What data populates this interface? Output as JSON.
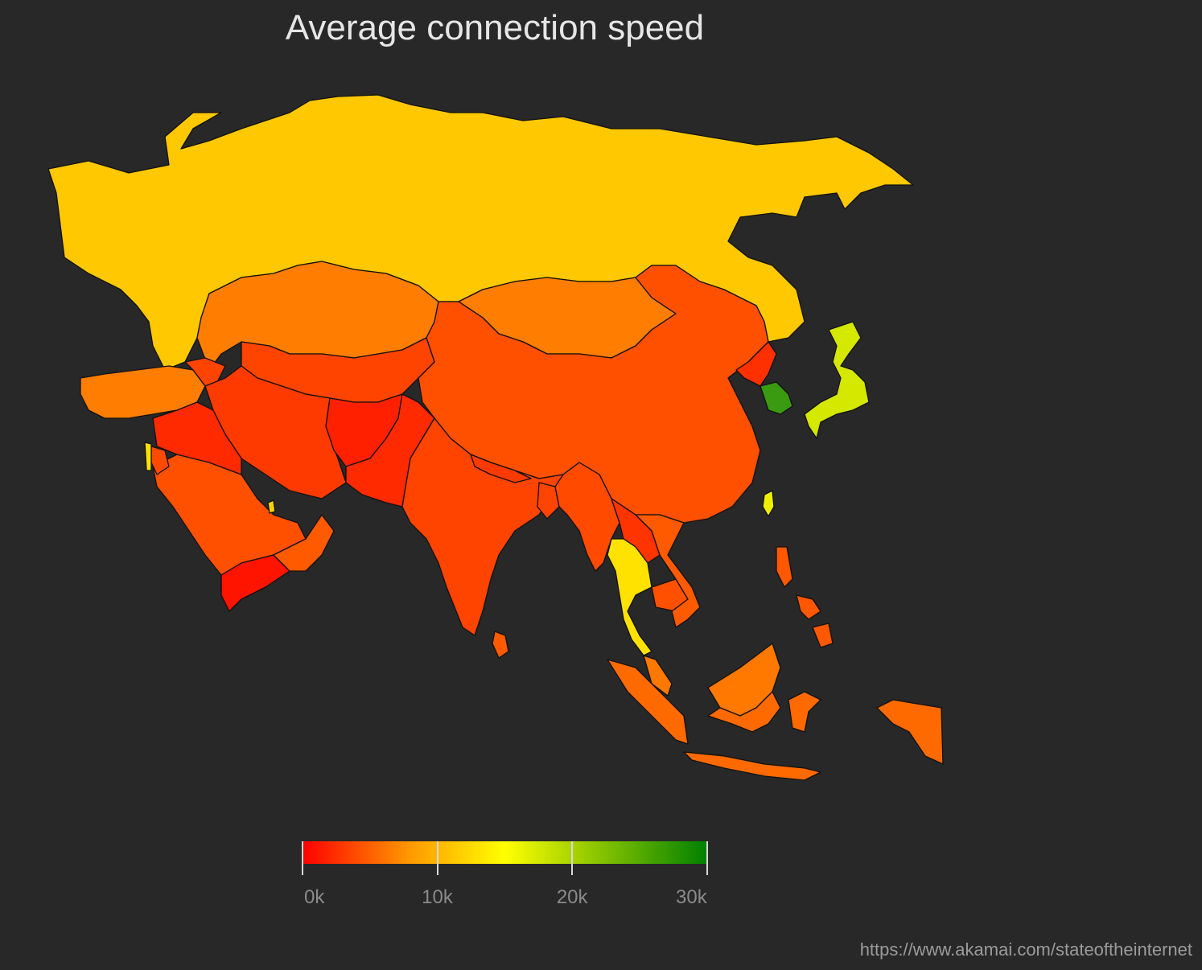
{
  "title": "Average connection speed",
  "source": "https://www.akamai.com/stateoftheinternet",
  "legend": {
    "min": 0,
    "max": 30000,
    "ticks": [
      {
        "value": 0,
        "label": "0k"
      },
      {
        "value": 10000,
        "label": "10k"
      },
      {
        "value": 20000,
        "label": "20k"
      },
      {
        "value": 30000,
        "label": "30k"
      }
    ],
    "gradient": [
      {
        "value": 0,
        "color": "#ff0000"
      },
      {
        "value": 8000,
        "color": "#ff9900"
      },
      {
        "value": 15000,
        "color": "#ffff00"
      },
      {
        "value": 30000,
        "color": "#008000"
      }
    ]
  },
  "regions": [
    {
      "id": "russia",
      "color": "#ffc800"
    },
    {
      "id": "kazakhstan",
      "color": "#ff7d00"
    },
    {
      "id": "mongolia",
      "color": "#ff7d00"
    },
    {
      "id": "china",
      "color": "#ff5000"
    },
    {
      "id": "north-korea",
      "color": "#ff3000"
    },
    {
      "id": "south-korea",
      "color": "#3a9a10"
    },
    {
      "id": "japan",
      "color": "#d4e800"
    },
    {
      "id": "taiwan",
      "color": "#f0ee00"
    },
    {
      "id": "turkey",
      "color": "#ff7d00"
    },
    {
      "id": "caucasus",
      "color": "#ff4400"
    },
    {
      "id": "central-asia",
      "color": "#ff4400"
    },
    {
      "id": "iran",
      "color": "#ff3a00"
    },
    {
      "id": "afghanistan",
      "color": "#ff2000"
    },
    {
      "id": "pakistan",
      "color": "#ff2a00"
    },
    {
      "id": "india",
      "color": "#ff4400"
    },
    {
      "id": "nepal",
      "color": "#ff3a00"
    },
    {
      "id": "sri-lanka",
      "color": "#ff5a00"
    },
    {
      "id": "myanmar",
      "color": "#ff4a00"
    },
    {
      "id": "bangladesh",
      "color": "#ff4400"
    },
    {
      "id": "thailand",
      "color": "#ffe200"
    },
    {
      "id": "laos",
      "color": "#ff3400"
    },
    {
      "id": "vietnam",
      "color": "#ff5a00"
    },
    {
      "id": "cambodia",
      "color": "#ff5000"
    },
    {
      "id": "malaysia",
      "color": "#ff7800"
    },
    {
      "id": "indonesia",
      "color": "#ff6a00"
    },
    {
      "id": "philippines",
      "color": "#ff5800"
    },
    {
      "id": "saudi-arabia",
      "color": "#ff5000"
    },
    {
      "id": "yemen",
      "color": "#ff1400"
    },
    {
      "id": "oman",
      "color": "#ff5a00"
    },
    {
      "id": "iraq-syria",
      "color": "#ff2a00"
    },
    {
      "id": "jordan",
      "color": "#ff4a00"
    },
    {
      "id": "israel",
      "color": "#ffe000"
    },
    {
      "id": "qatar",
      "color": "#ffd000"
    }
  ]
}
